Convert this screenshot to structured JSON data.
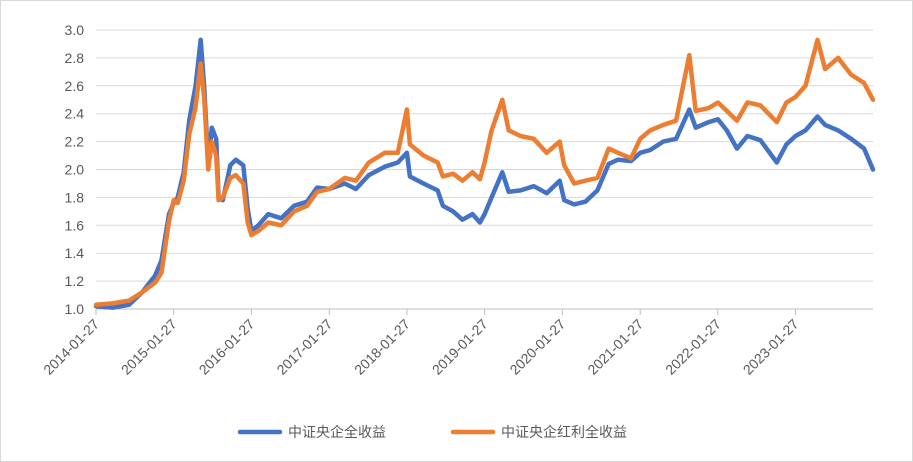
{
  "chart_data": {
    "type": "line",
    "title": "",
    "xlabel": "",
    "ylabel": "",
    "ylim": [
      1.0,
      3.0
    ],
    "y_ticks": [
      "1.0",
      "1.2",
      "1.4",
      "1.6",
      "1.8",
      "2.0",
      "2.2",
      "2.4",
      "2.6",
      "2.8",
      "3.0"
    ],
    "x_ticks": [
      "2014-01-27",
      "2015-01-27",
      "2016-01-27",
      "2017-01-27",
      "2018-01-27",
      "2019-01-27",
      "2020-01-27",
      "2021-01-27",
      "2022-01-27",
      "2023-01-27"
    ],
    "x_range": [
      "2014-01-27",
      "2024-01-26"
    ],
    "grid": "horizontal",
    "legend_position": "bottom",
    "series": [
      {
        "name": "中证央企全收益",
        "color": "#4472C4",
        "points": [
          [
            "2014-01-27",
            1.02
          ],
          [
            "2014-04-15",
            1.01
          ],
          [
            "2014-07-01",
            1.03
          ],
          [
            "2014-09-01",
            1.12
          ],
          [
            "2014-11-01",
            1.24
          ],
          [
            "2014-12-01",
            1.35
          ],
          [
            "2015-01-05",
            1.68
          ],
          [
            "2015-01-27",
            1.76
          ],
          [
            "2015-02-15",
            1.8
          ],
          [
            "2015-03-15",
            1.98
          ],
          [
            "2015-04-10",
            2.35
          ],
          [
            "2015-05-10",
            2.6
          ],
          [
            "2015-06-03",
            2.93
          ],
          [
            "2015-06-20",
            2.58
          ],
          [
            "2015-07-08",
            2.05
          ],
          [
            "2015-07-25",
            2.3
          ],
          [
            "2015-08-15",
            2.22
          ],
          [
            "2015-08-26",
            1.8
          ],
          [
            "2015-09-15",
            1.78
          ],
          [
            "2015-10-20",
            2.03
          ],
          [
            "2015-11-15",
            2.07
          ],
          [
            "2015-12-20",
            2.03
          ],
          [
            "2016-01-10",
            1.72
          ],
          [
            "2016-01-27",
            1.56
          ],
          [
            "2016-02-29",
            1.6
          ],
          [
            "2016-04-15",
            1.68
          ],
          [
            "2016-06-15",
            1.65
          ],
          [
            "2016-08-15",
            1.74
          ],
          [
            "2016-10-15",
            1.77
          ],
          [
            "2016-12-01",
            1.87
          ],
          [
            "2017-01-27",
            1.86
          ],
          [
            "2017-04-10",
            1.9
          ],
          [
            "2017-06-01",
            1.86
          ],
          [
            "2017-08-01",
            1.96
          ],
          [
            "2017-10-15",
            2.02
          ],
          [
            "2017-12-15",
            2.05
          ],
          [
            "2018-01-27",
            2.12
          ],
          [
            "2018-02-10",
            1.95
          ],
          [
            "2018-04-15",
            1.9
          ],
          [
            "2018-06-20",
            1.85
          ],
          [
            "2018-07-15",
            1.74
          ],
          [
            "2018-09-01",
            1.7
          ],
          [
            "2018-10-15",
            1.64
          ],
          [
            "2018-12-01",
            1.68
          ],
          [
            "2019-01-05",
            1.62
          ],
          [
            "2019-01-27",
            1.68
          ],
          [
            "2019-03-01",
            1.8
          ],
          [
            "2019-04-20",
            1.98
          ],
          [
            "2019-05-20",
            1.84
          ],
          [
            "2019-07-15",
            1.85
          ],
          [
            "2019-09-15",
            1.88
          ],
          [
            "2019-11-15",
            1.83
          ],
          [
            "2020-01-15",
            1.92
          ],
          [
            "2020-02-05",
            1.78
          ],
          [
            "2020-03-23",
            1.75
          ],
          [
            "2020-05-15",
            1.77
          ],
          [
            "2020-07-10",
            1.85
          ],
          [
            "2020-09-01",
            2.04
          ],
          [
            "2020-10-15",
            2.07
          ],
          [
            "2020-12-15",
            2.06
          ],
          [
            "2021-01-27",
            2.12
          ],
          [
            "2021-03-15",
            2.14
          ],
          [
            "2021-05-15",
            2.2
          ],
          [
            "2021-07-15",
            2.22
          ],
          [
            "2021-09-15",
            2.43
          ],
          [
            "2021-10-15",
            2.3
          ],
          [
            "2021-12-15",
            2.34
          ],
          [
            "2022-01-27",
            2.36
          ],
          [
            "2022-03-10",
            2.28
          ],
          [
            "2022-04-27",
            2.15
          ],
          [
            "2022-06-15",
            2.24
          ],
          [
            "2022-08-15",
            2.21
          ],
          [
            "2022-10-31",
            2.05
          ],
          [
            "2022-12-15",
            2.18
          ],
          [
            "2023-01-27",
            2.24
          ],
          [
            "2023-03-15",
            2.28
          ],
          [
            "2023-05-10",
            2.38
          ],
          [
            "2023-06-15",
            2.32
          ],
          [
            "2023-08-15",
            2.28
          ],
          [
            "2023-10-15",
            2.22
          ],
          [
            "2023-12-15",
            2.15
          ],
          [
            "2024-01-26",
            2.0
          ]
        ]
      },
      {
        "name": "中证央企红利全收益",
        "color": "#ED7D31",
        "points": [
          [
            "2014-01-27",
            1.03
          ],
          [
            "2014-04-15",
            1.04
          ],
          [
            "2014-07-01",
            1.06
          ],
          [
            "2014-09-01",
            1.12
          ],
          [
            "2014-11-01",
            1.19
          ],
          [
            "2014-12-01",
            1.26
          ],
          [
            "2015-01-05",
            1.63
          ],
          [
            "2015-01-27",
            1.78
          ],
          [
            "2015-02-15",
            1.76
          ],
          [
            "2015-03-15",
            1.92
          ],
          [
            "2015-04-10",
            2.25
          ],
          [
            "2015-05-10",
            2.45
          ],
          [
            "2015-06-03",
            2.76
          ],
          [
            "2015-06-20",
            2.5
          ],
          [
            "2015-07-08",
            2.0
          ],
          [
            "2015-07-25",
            2.2
          ],
          [
            "2015-08-15",
            2.1
          ],
          [
            "2015-08-26",
            1.78
          ],
          [
            "2015-09-15",
            1.8
          ],
          [
            "2015-10-20",
            1.94
          ],
          [
            "2015-11-15",
            1.96
          ],
          [
            "2015-12-20",
            1.9
          ],
          [
            "2016-01-10",
            1.62
          ],
          [
            "2016-01-27",
            1.53
          ],
          [
            "2016-02-29",
            1.56
          ],
          [
            "2016-04-15",
            1.62
          ],
          [
            "2016-06-15",
            1.6
          ],
          [
            "2016-08-15",
            1.7
          ],
          [
            "2016-10-15",
            1.74
          ],
          [
            "2016-12-01",
            1.84
          ],
          [
            "2017-01-27",
            1.86
          ],
          [
            "2017-04-10",
            1.94
          ],
          [
            "2017-06-01",
            1.92
          ],
          [
            "2017-08-01",
            2.05
          ],
          [
            "2017-10-15",
            2.12
          ],
          [
            "2017-12-15",
            2.12
          ],
          [
            "2018-01-27",
            2.43
          ],
          [
            "2018-02-10",
            2.18
          ],
          [
            "2018-04-15",
            2.1
          ],
          [
            "2018-06-20",
            2.05
          ],
          [
            "2018-07-15",
            1.95
          ],
          [
            "2018-09-01",
            1.97
          ],
          [
            "2018-10-15",
            1.92
          ],
          [
            "2018-12-01",
            1.98
          ],
          [
            "2019-01-05",
            1.93
          ],
          [
            "2019-01-27",
            2.05
          ],
          [
            "2019-03-01",
            2.28
          ],
          [
            "2019-04-20",
            2.5
          ],
          [
            "2019-05-20",
            2.28
          ],
          [
            "2019-07-15",
            2.24
          ],
          [
            "2019-09-15",
            2.22
          ],
          [
            "2019-11-15",
            2.12
          ],
          [
            "2020-01-15",
            2.2
          ],
          [
            "2020-02-05",
            2.03
          ],
          [
            "2020-03-23",
            1.9
          ],
          [
            "2020-05-15",
            1.92
          ],
          [
            "2020-07-10",
            1.94
          ],
          [
            "2020-09-01",
            2.15
          ],
          [
            "2020-10-15",
            2.12
          ],
          [
            "2020-12-15",
            2.08
          ],
          [
            "2021-01-27",
            2.22
          ],
          [
            "2021-03-15",
            2.28
          ],
          [
            "2021-05-15",
            2.32
          ],
          [
            "2021-07-15",
            2.35
          ],
          [
            "2021-09-15",
            2.82
          ],
          [
            "2021-10-15",
            2.42
          ],
          [
            "2021-12-15",
            2.44
          ],
          [
            "2022-01-27",
            2.48
          ],
          [
            "2022-03-10",
            2.42
          ],
          [
            "2022-04-27",
            2.35
          ],
          [
            "2022-06-15",
            2.48
          ],
          [
            "2022-08-15",
            2.46
          ],
          [
            "2022-10-31",
            2.34
          ],
          [
            "2022-12-15",
            2.48
          ],
          [
            "2023-01-27",
            2.52
          ],
          [
            "2023-03-15",
            2.6
          ],
          [
            "2023-05-10",
            2.93
          ],
          [
            "2023-06-15",
            2.72
          ],
          [
            "2023-08-15",
            2.8
          ],
          [
            "2023-10-15",
            2.68
          ],
          [
            "2023-12-15",
            2.62
          ],
          [
            "2024-01-26",
            2.5
          ]
        ]
      }
    ]
  }
}
